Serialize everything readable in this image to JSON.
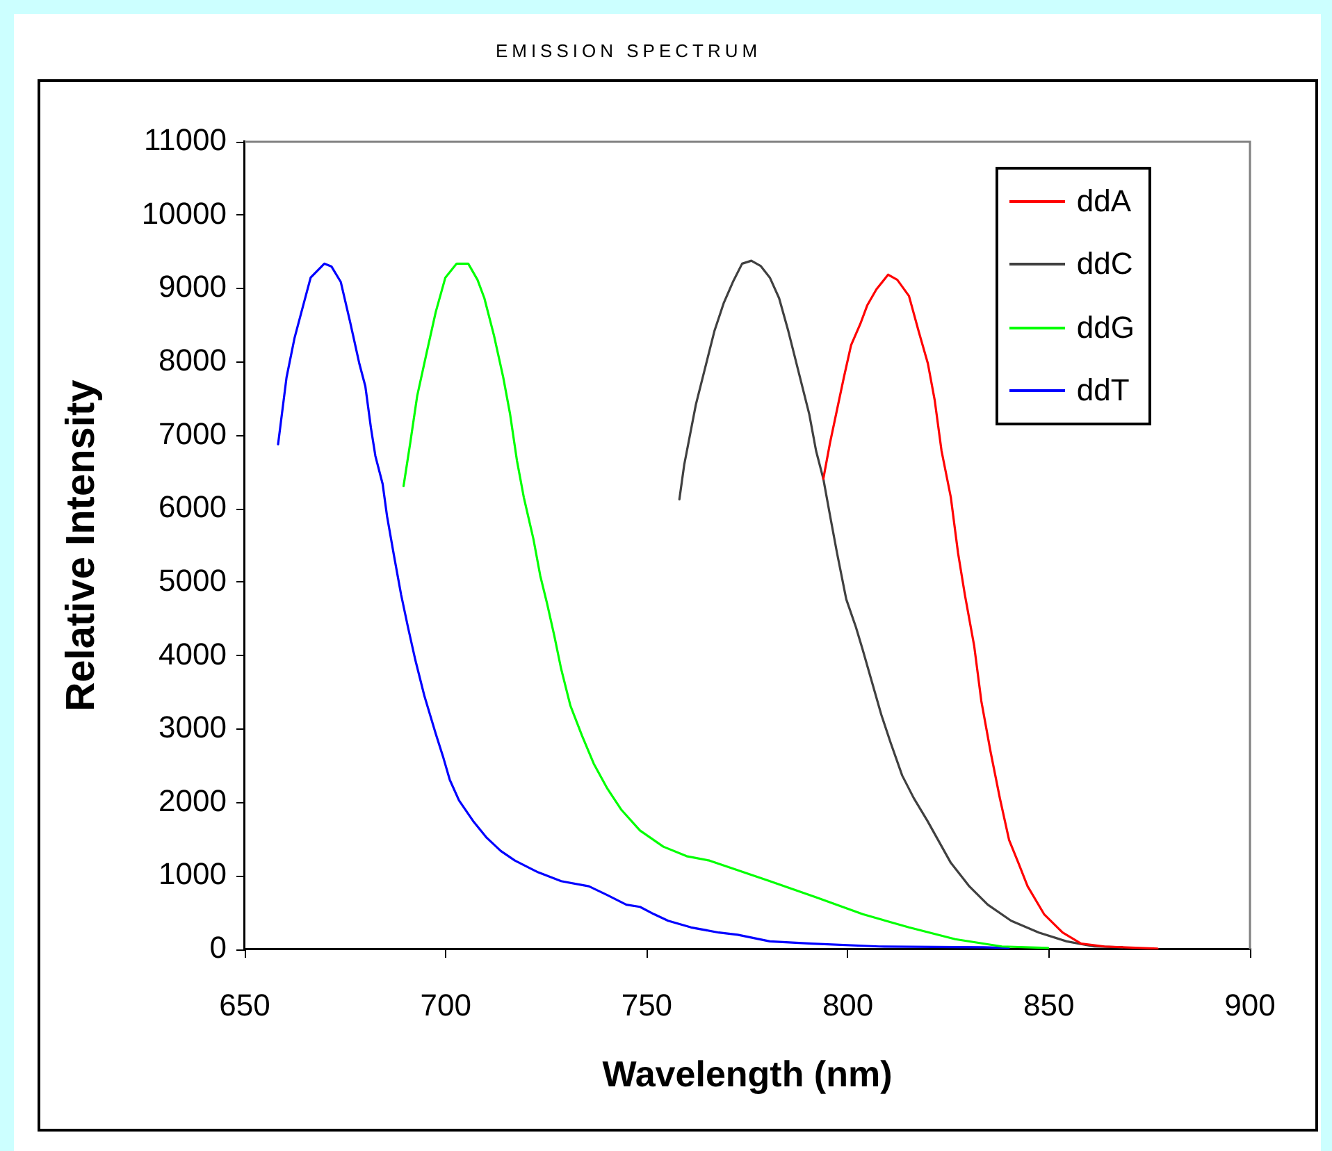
{
  "chart_data": {
    "type": "line",
    "title": "EMISSION SPECTRUM",
    "xlabel": "Wavelength (nm)",
    "ylabel": "Relative Intensity",
    "xlim": [
      650,
      900
    ],
    "xticks": [
      650,
      700,
      750,
      800,
      850,
      900
    ],
    "ylim": [
      0,
      11000
    ],
    "yticks": [
      0,
      1000,
      2000,
      3000,
      4000,
      5000,
      6000,
      7000,
      8000,
      9000,
      10000,
      11000
    ],
    "grid": false,
    "legend": "top right",
    "marker": "none",
    "line_style": "solid",
    "series": [
      {
        "name": "ddA",
        "color": "#ff0000",
        "x": [
          793.9,
          795.6,
          797.3,
          799,
          800.8,
          803.1,
          804.8,
          807.1,
          810,
          812.3,
          815.2,
          817.6,
          819.9,
          821.6,
          823.3,
          825.6,
          827.4,
          829.1,
          831.4,
          833.2,
          835.5,
          837.8,
          840.1,
          842.4,
          844.7,
          848.8,
          853.4,
          858,
          863.8,
          877
        ],
        "values": [
          6410,
          6910,
          7350,
          7790,
          8230,
          8520,
          8770,
          8990,
          9190,
          9120,
          8900,
          8420,
          7980,
          7480,
          6790,
          6160,
          5400,
          4830,
          4140,
          3380,
          2690,
          2060,
          1490,
          1180,
          860,
          480,
          230,
          80,
          40,
          10
        ]
      },
      {
        "name": "ddC",
        "color": "#404040",
        "x": [
          758.1,
          759.3,
          762.2,
          764.5,
          766.8,
          769.1,
          771.4,
          773.7,
          776,
          778.3,
          780.6,
          782.9,
          785.2,
          787.5,
          790.4,
          792.1,
          793.9,
          795.6,
          797.3,
          799.6,
          802,
          803.7,
          806,
          808.3,
          810.6,
          813.5,
          816.4,
          819.8,
          825.6,
          830.2,
          834.8,
          840.6,
          847.5,
          854.4,
          861.3,
          868.3
        ],
        "values": [
          6130,
          6600,
          7420,
          7920,
          8420,
          8800,
          9090,
          9340,
          9380,
          9310,
          9150,
          8870,
          8420,
          7920,
          7290,
          6790,
          6410,
          5900,
          5400,
          4770,
          4390,
          4080,
          3640,
          3200,
          2820,
          2370,
          2060,
          1750,
          1180,
          860,
          610,
          390,
          230,
          110,
          40,
          30
        ]
      },
      {
        "name": "ddG",
        "color": "#00ff00",
        "x": [
          689.5,
          691.2,
          692.9,
          695.3,
          697.5,
          699.9,
          702.7,
          705.6,
          707.9,
          709.6,
          712,
          714.3,
          716,
          717.7,
          719.4,
          721.8,
          723.5,
          725.2,
          727,
          728.7,
          731,
          733.9,
          736.8,
          740.2,
          743.7,
          748.3,
          754.1,
          759.9,
          765.6,
          772.6,
          780.6,
          792.1,
          803.7,
          815.2,
          826.7,
          838.3,
          849.8
        ],
        "values": [
          6310,
          6910,
          7540,
          8140,
          8680,
          9150,
          9340,
          9340,
          9120,
          8870,
          8360,
          7790,
          7290,
          6660,
          6160,
          5590,
          5090,
          4710,
          4270,
          3820,
          3320,
          2910,
          2530,
          2190,
          1900,
          1620,
          1400,
          1270,
          1210,
          1080,
          930,
          710,
          480,
          300,
          140,
          40,
          20
        ]
      },
      {
        "name": "ddT",
        "color": "#0000ff",
        "x": [
          658.3,
          660.4,
          662.4,
          664.1,
          666.4,
          669.8,
          671.6,
          673.9,
          676.2,
          678.5,
          680,
          681.4,
          682.5,
          684.3,
          685.4,
          687.2,
          688.9,
          690.6,
          692.4,
          694.7,
          697.5,
          699.3,
          701,
          703.3,
          706.8,
          710.2,
          713.7,
          717.2,
          723,
          728.7,
          735.6,
          740.2,
          744.9,
          748.3,
          751.8,
          755.3,
          761,
          767.9,
          772.6,
          780.6,
          791,
          807.8,
          833.7,
          840
        ],
        "values": [
          6880,
          7790,
          8330,
          8680,
          9150,
          9340,
          9300,
          9090,
          8550,
          7980,
          7670,
          7100,
          6720,
          6340,
          5900,
          5340,
          4830,
          4390,
          3950,
          3450,
          2940,
          2630,
          2310,
          2030,
          1750,
          1520,
          1340,
          1210,
          1050,
          930,
          860,
          740,
          610,
          580,
          480,
          390,
          300,
          230,
          200,
          110,
          80,
          40,
          30,
          20
        ]
      }
    ]
  }
}
